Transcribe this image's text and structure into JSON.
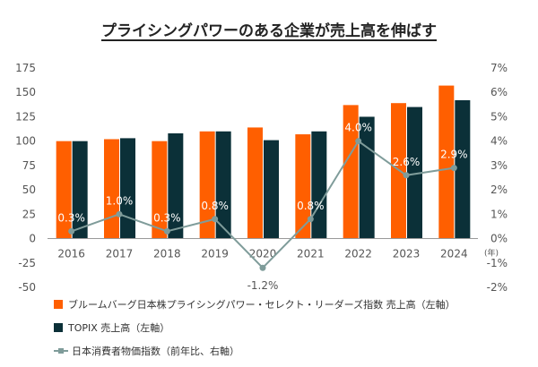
{
  "chart_data": {
    "type": "bar",
    "title": "プライシングパワーのある企業が売上高を伸ばす",
    "categories": [
      "2016",
      "2017",
      "2018",
      "2019",
      "2020",
      "2021",
      "2022",
      "2023",
      "2024"
    ],
    "x_unit": "(年)",
    "series": [
      {
        "name": "ブルームバーグ日本株プライシングパワー・セレクト・リーダーズ指数 売上高（左軸）",
        "type": "bar",
        "axis": "left",
        "color": "#ff5f00",
        "values": [
          100,
          102,
          100,
          110,
          114,
          107,
          137,
          139,
          157
        ]
      },
      {
        "name": "TOPIX 売上高（左軸）",
        "type": "bar",
        "axis": "left",
        "color": "#0b3038",
        "values": [
          100,
          103,
          108,
          110,
          101,
          110,
          125,
          135,
          142
        ]
      },
      {
        "name": "日本消費者物価指数（前年比、右軸）",
        "type": "line",
        "axis": "right",
        "color": "#7f9c9a",
        "values": [
          0.3,
          1.0,
          0.3,
          0.8,
          -1.2,
          0.8,
          4.0,
          2.6,
          2.9
        ],
        "labels": [
          "0.3%",
          "1.0%",
          "0.3%",
          "0.8%",
          "-1.2%",
          "0.8%",
          "4.0%",
          "2.6%",
          "2.9%"
        ]
      }
    ],
    "y_left": {
      "min": -50,
      "max": 175,
      "ticks": [
        "-50",
        "-25",
        "0",
        "25",
        "50",
        "75",
        "100",
        "125",
        "150",
        "175"
      ]
    },
    "y_right": {
      "min": -2,
      "max": 7,
      "ticks": [
        "-2%",
        "-1%",
        "0%",
        "1%",
        "2%",
        "3%",
        "4%",
        "5%",
        "6%",
        "7%"
      ]
    },
    "grid": false,
    "legend_position": "bottom"
  }
}
